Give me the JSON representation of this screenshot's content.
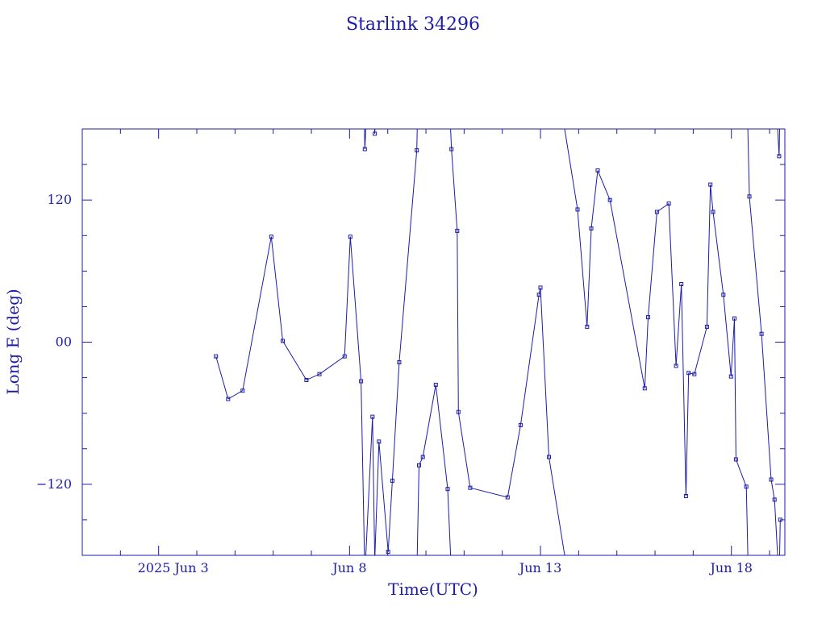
{
  "colors": {
    "ink": "#1c1ca8",
    "background": "#ffffff"
  },
  "chart_data": {
    "type": "line",
    "title": "Starlink 34296",
    "xlabel": "Time(UTC)",
    "ylabel": "Long E (deg)",
    "x_unit": "days of June 2025 (UTC)",
    "xlim": [
      1.0,
      19.4
    ],
    "ylim": [
      -180,
      180
    ],
    "x_tick_labels": [
      {
        "x": 3,
        "label": "2025 Jun  3"
      },
      {
        "x": 8,
        "label": "Jun  8"
      },
      {
        "x": 13,
        "label": "Jun 13"
      },
      {
        "x": 18,
        "label": "Jun 18"
      }
    ],
    "y_tick_labels": [
      {
        "y": 120,
        "label": "120"
      },
      {
        "y": 0,
        "label": "00"
      },
      {
        "y": -120,
        "label": "−120"
      }
    ],
    "grid": false,
    "legend": "none",
    "longitude_wraps_at": [
      -180,
      180
    ],
    "series": [
      {
        "points": [
          [
            4.5,
            -12
          ],
          [
            4.82,
            -48
          ],
          [
            5.2,
            -41
          ],
          [
            5.95,
            89
          ],
          [
            6.25,
            1
          ],
          [
            6.87,
            -32
          ],
          [
            7.21,
            -27
          ],
          [
            7.87,
            -12
          ],
          [
            8.02,
            89
          ],
          [
            8.3,
            -33
          ],
          [
            8.4,
            163
          ],
          [
            8.6,
            -63
          ],
          [
            8.66,
            176
          ],
          [
            8.77,
            -84
          ],
          [
            9.01,
            -177
          ],
          [
            9.12,
            -117
          ],
          [
            9.3,
            -17
          ],
          [
            9.76,
            162
          ],
          [
            9.82,
            -104
          ],
          [
            9.92,
            -97
          ],
          [
            10.26,
            -36
          ],
          [
            10.57,
            -124
          ],
          [
            10.67,
            163
          ],
          [
            10.82,
            94
          ],
          [
            10.85,
            -59
          ],
          [
            11.16,
            -123
          ],
          [
            12.14,
            -131
          ],
          [
            12.48,
            -70
          ],
          [
            12.96,
            40
          ],
          [
            13.0,
            46
          ],
          [
            13.22,
            -97
          ],
          [
            13.97,
            112
          ],
          [
            14.22,
            13
          ],
          [
            14.33,
            96
          ],
          [
            14.5,
            145
          ],
          [
            14.82,
            120
          ],
          [
            15.73,
            -39
          ],
          [
            15.82,
            21
          ],
          [
            16.05,
            110
          ],
          [
            16.36,
            117
          ],
          [
            16.55,
            -20
          ],
          [
            16.69,
            49
          ],
          [
            16.81,
            -130
          ],
          [
            16.88,
            -26
          ],
          [
            17.03,
            -27
          ],
          [
            17.36,
            13
          ],
          [
            17.45,
            133
          ],
          [
            17.52,
            110
          ],
          [
            17.79,
            40
          ],
          [
            17.99,
            -29
          ],
          [
            18.08,
            20
          ],
          [
            18.12,
            -99
          ],
          [
            18.39,
            -122
          ],
          [
            18.47,
            123
          ],
          [
            18.79,
            7
          ],
          [
            19.04,
            -116
          ],
          [
            19.13,
            -133
          ],
          [
            19.25,
            157
          ],
          [
            19.28,
            -150
          ]
        ]
      }
    ]
  }
}
